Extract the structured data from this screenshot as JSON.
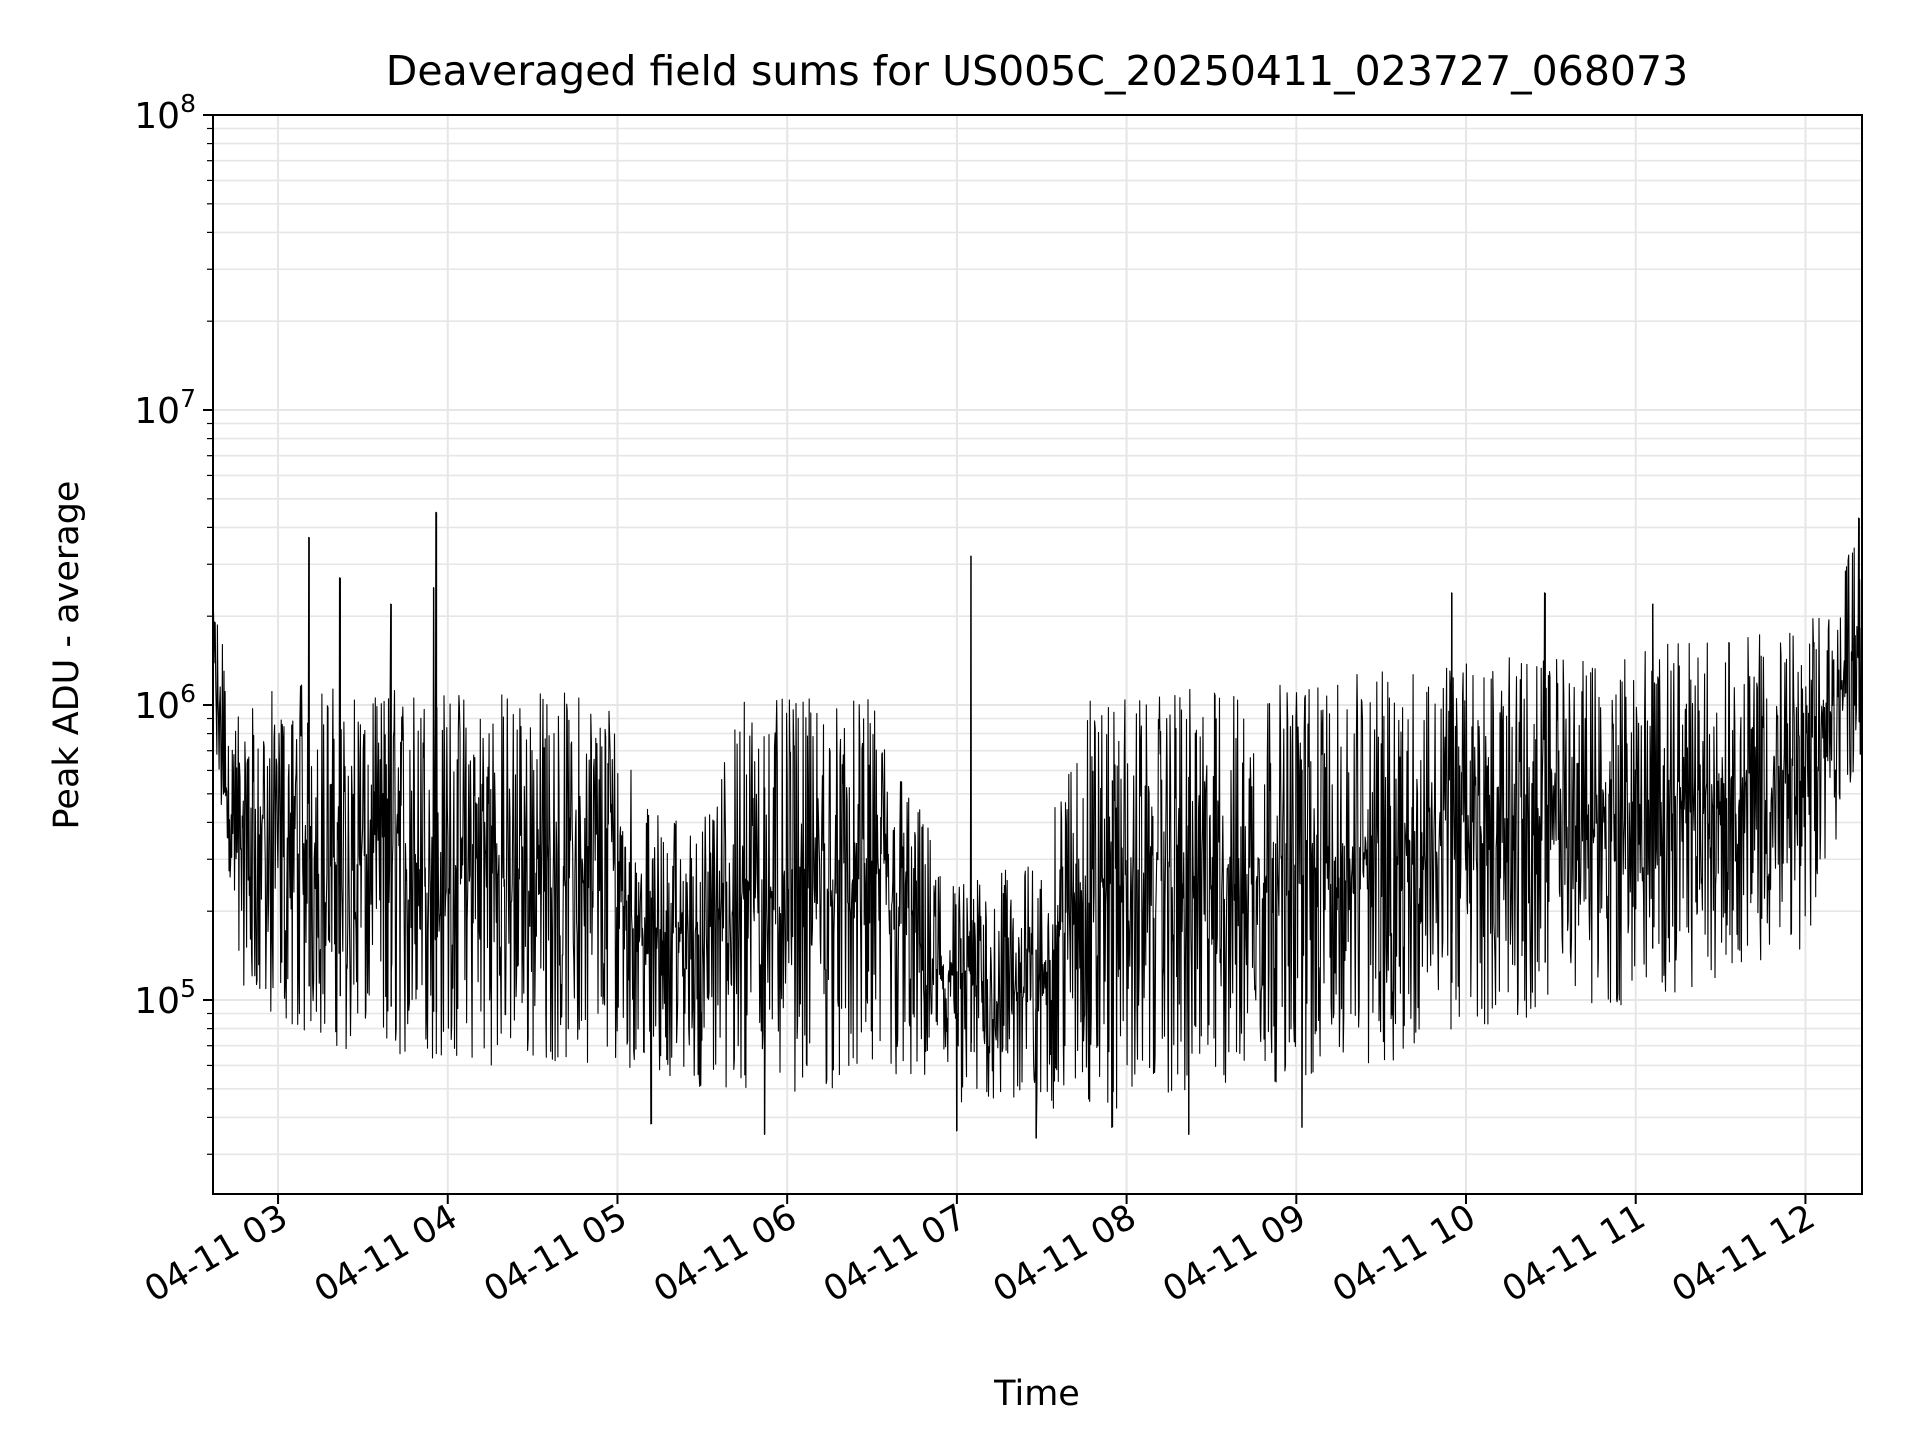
{
  "chart_data": {
    "type": "line",
    "title": "Deaveraged field sums for US005C_20250411_023727_068073",
    "xlabel": "Time",
    "ylabel": "Peak ADU - average",
    "x_scale": "time",
    "y_scale": "log",
    "xlim": [
      "2025-04-11 02:37",
      "2025-04-11 12:20"
    ],
    "ylim": [
      22000,
      100000000
    ],
    "grid": true,
    "legend": "none",
    "x_ticks": [
      "04-11 03",
      "04-11 04",
      "04-11 05",
      "04-11 06",
      "04-11 07",
      "04-11 08",
      "04-11 09",
      "04-11 10",
      "04-11 11",
      "04-11 12"
    ],
    "y_ticks": [
      {
        "value": 100000,
        "base": "10",
        "exp": "5"
      },
      {
        "value": 1000000,
        "base": "10",
        "exp": "6"
      },
      {
        "value": 10000000,
        "base": "10",
        "exp": "7"
      },
      {
        "value": 100000000,
        "base": "10",
        "exp": "8"
      }
    ],
    "series": [
      {
        "color": "#000000",
        "envelope": [
          {
            "x": "2025-04-11 02:37",
            "low": 800000,
            "high": 2500000
          },
          {
            "x": "2025-04-11 02:45",
            "low": 120000,
            "high": 900000
          },
          {
            "x": "2025-04-11 03:00",
            "low": 80000,
            "high": 1200000
          },
          {
            "x": "2025-04-11 03:30",
            "low": 65000,
            "high": 1200000
          },
          {
            "x": "2025-04-11 04:00",
            "low": 60000,
            "high": 1150000
          },
          {
            "x": "2025-04-11 04:30",
            "low": 60000,
            "high": 1150000
          },
          {
            "x": "2025-04-11 05:00",
            "low": 62000,
            "high": 1100000
          },
          {
            "x": "2025-04-11 05:10",
            "low": 55000,
            "high": 450000
          },
          {
            "x": "2025-04-11 05:30",
            "low": 50000,
            "high": 400000
          },
          {
            "x": "2025-04-11 05:45",
            "low": 48000,
            "high": 1050000
          },
          {
            "x": "2025-04-11 06:30",
            "low": 50000,
            "high": 1050000
          },
          {
            "x": "2025-04-11 06:45",
            "low": 48000,
            "high": 500000
          },
          {
            "x": "2025-04-11 07:00",
            "low": 45000,
            "high": 250000
          },
          {
            "x": "2025-04-11 07:30",
            "low": 42000,
            "high": 300000
          },
          {
            "x": "2025-04-11 07:45",
            "low": 42000,
            "high": 1100000
          },
          {
            "x": "2025-04-11 08:30",
            "low": 45000,
            "high": 1150000
          },
          {
            "x": "2025-04-11 09:00",
            "low": 55000,
            "high": 1200000
          },
          {
            "x": "2025-04-11 09:30",
            "low": 60000,
            "high": 1300000
          },
          {
            "x": "2025-04-11 10:00",
            "low": 80000,
            "high": 1400000
          },
          {
            "x": "2025-04-11 10:30",
            "low": 90000,
            "high": 1500000
          },
          {
            "x": "2025-04-11 11:00",
            "low": 95000,
            "high": 1600000
          },
          {
            "x": "2025-04-11 11:30",
            "low": 120000,
            "high": 1700000
          },
          {
            "x": "2025-04-11 12:00",
            "low": 150000,
            "high": 1800000
          },
          {
            "x": "2025-04-11 12:20",
            "low": 700000,
            "high": 4000000
          }
        ],
        "spikes": [
          {
            "x": "2025-04-11 02:37",
            "y": 2500000
          },
          {
            "x": "2025-04-11 03:11",
            "y": 3700000
          },
          {
            "x": "2025-04-11 03:22",
            "y": 2700000
          },
          {
            "x": "2025-04-11 03:40",
            "y": 2200000
          },
          {
            "x": "2025-04-11 03:55",
            "y": 2500000
          },
          {
            "x": "2025-04-11 03:56",
            "y": 4500000
          },
          {
            "x": "2025-04-11 07:05",
            "y": 3200000
          },
          {
            "x": "2025-04-11 09:55",
            "y": 2400000
          },
          {
            "x": "2025-04-11 10:28",
            "y": 2400000
          },
          {
            "x": "2025-04-11 11:06",
            "y": 2200000
          },
          {
            "x": "2025-04-11 12:19",
            "y": 4300000
          }
        ],
        "dips": [
          {
            "x": "2025-04-11 05:12",
            "y": 38000
          },
          {
            "x": "2025-04-11 05:52",
            "y": 35000
          },
          {
            "x": "2025-04-11 07:00",
            "y": 36000
          },
          {
            "x": "2025-04-11 07:28",
            "y": 34000
          },
          {
            "x": "2025-04-11 07:55",
            "y": 37000
          },
          {
            "x": "2025-04-11 08:22",
            "y": 35000
          },
          {
            "x": "2025-04-11 09:02",
            "y": 37000
          }
        ]
      }
    ]
  }
}
